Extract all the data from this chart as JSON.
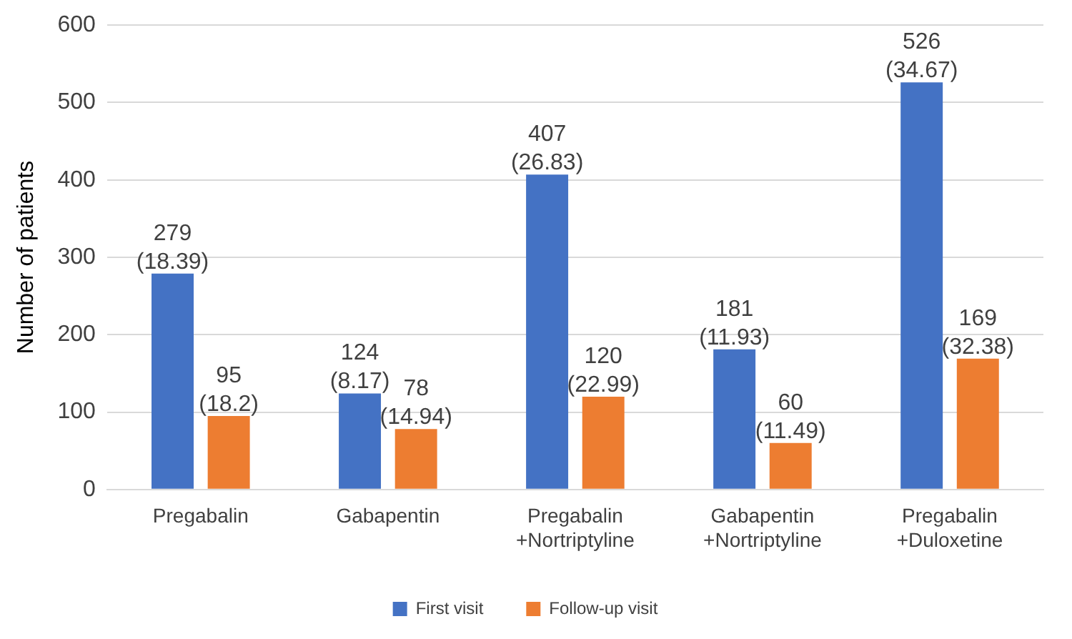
{
  "chart_data": {
    "type": "bar",
    "ylabel": "Number of patients",
    "categories": [
      "Pregabalin",
      "Gabapentin",
      "Pregabalin +Nortriptyline",
      "Gabapentin +Nortriptyline",
      "Pregabalin +Duloxetine"
    ],
    "series": [
      {
        "name": "First visit",
        "color": "#4472c4",
        "values": [
          279,
          124,
          407,
          181,
          526
        ],
        "value_labels": [
          "279 (18.39)",
          "124 (8.17)",
          "407 (26.83)",
          "181 (11.93)",
          "526 (34.67)"
        ]
      },
      {
        "name": "Follow-up visit",
        "color": "#ed7d31",
        "values": [
          95,
          78,
          120,
          60,
          169
        ],
        "value_labels": [
          "95 (18.2)",
          "78 (14.94)",
          "120 (22.99)",
          "60 (11.49)",
          "169 (32.38)"
        ]
      }
    ],
    "ylim": [
      0,
      600
    ],
    "yticks": [
      0,
      100,
      200,
      300,
      400,
      500,
      600
    ],
    "grid": "y",
    "legend": "bottom"
  }
}
